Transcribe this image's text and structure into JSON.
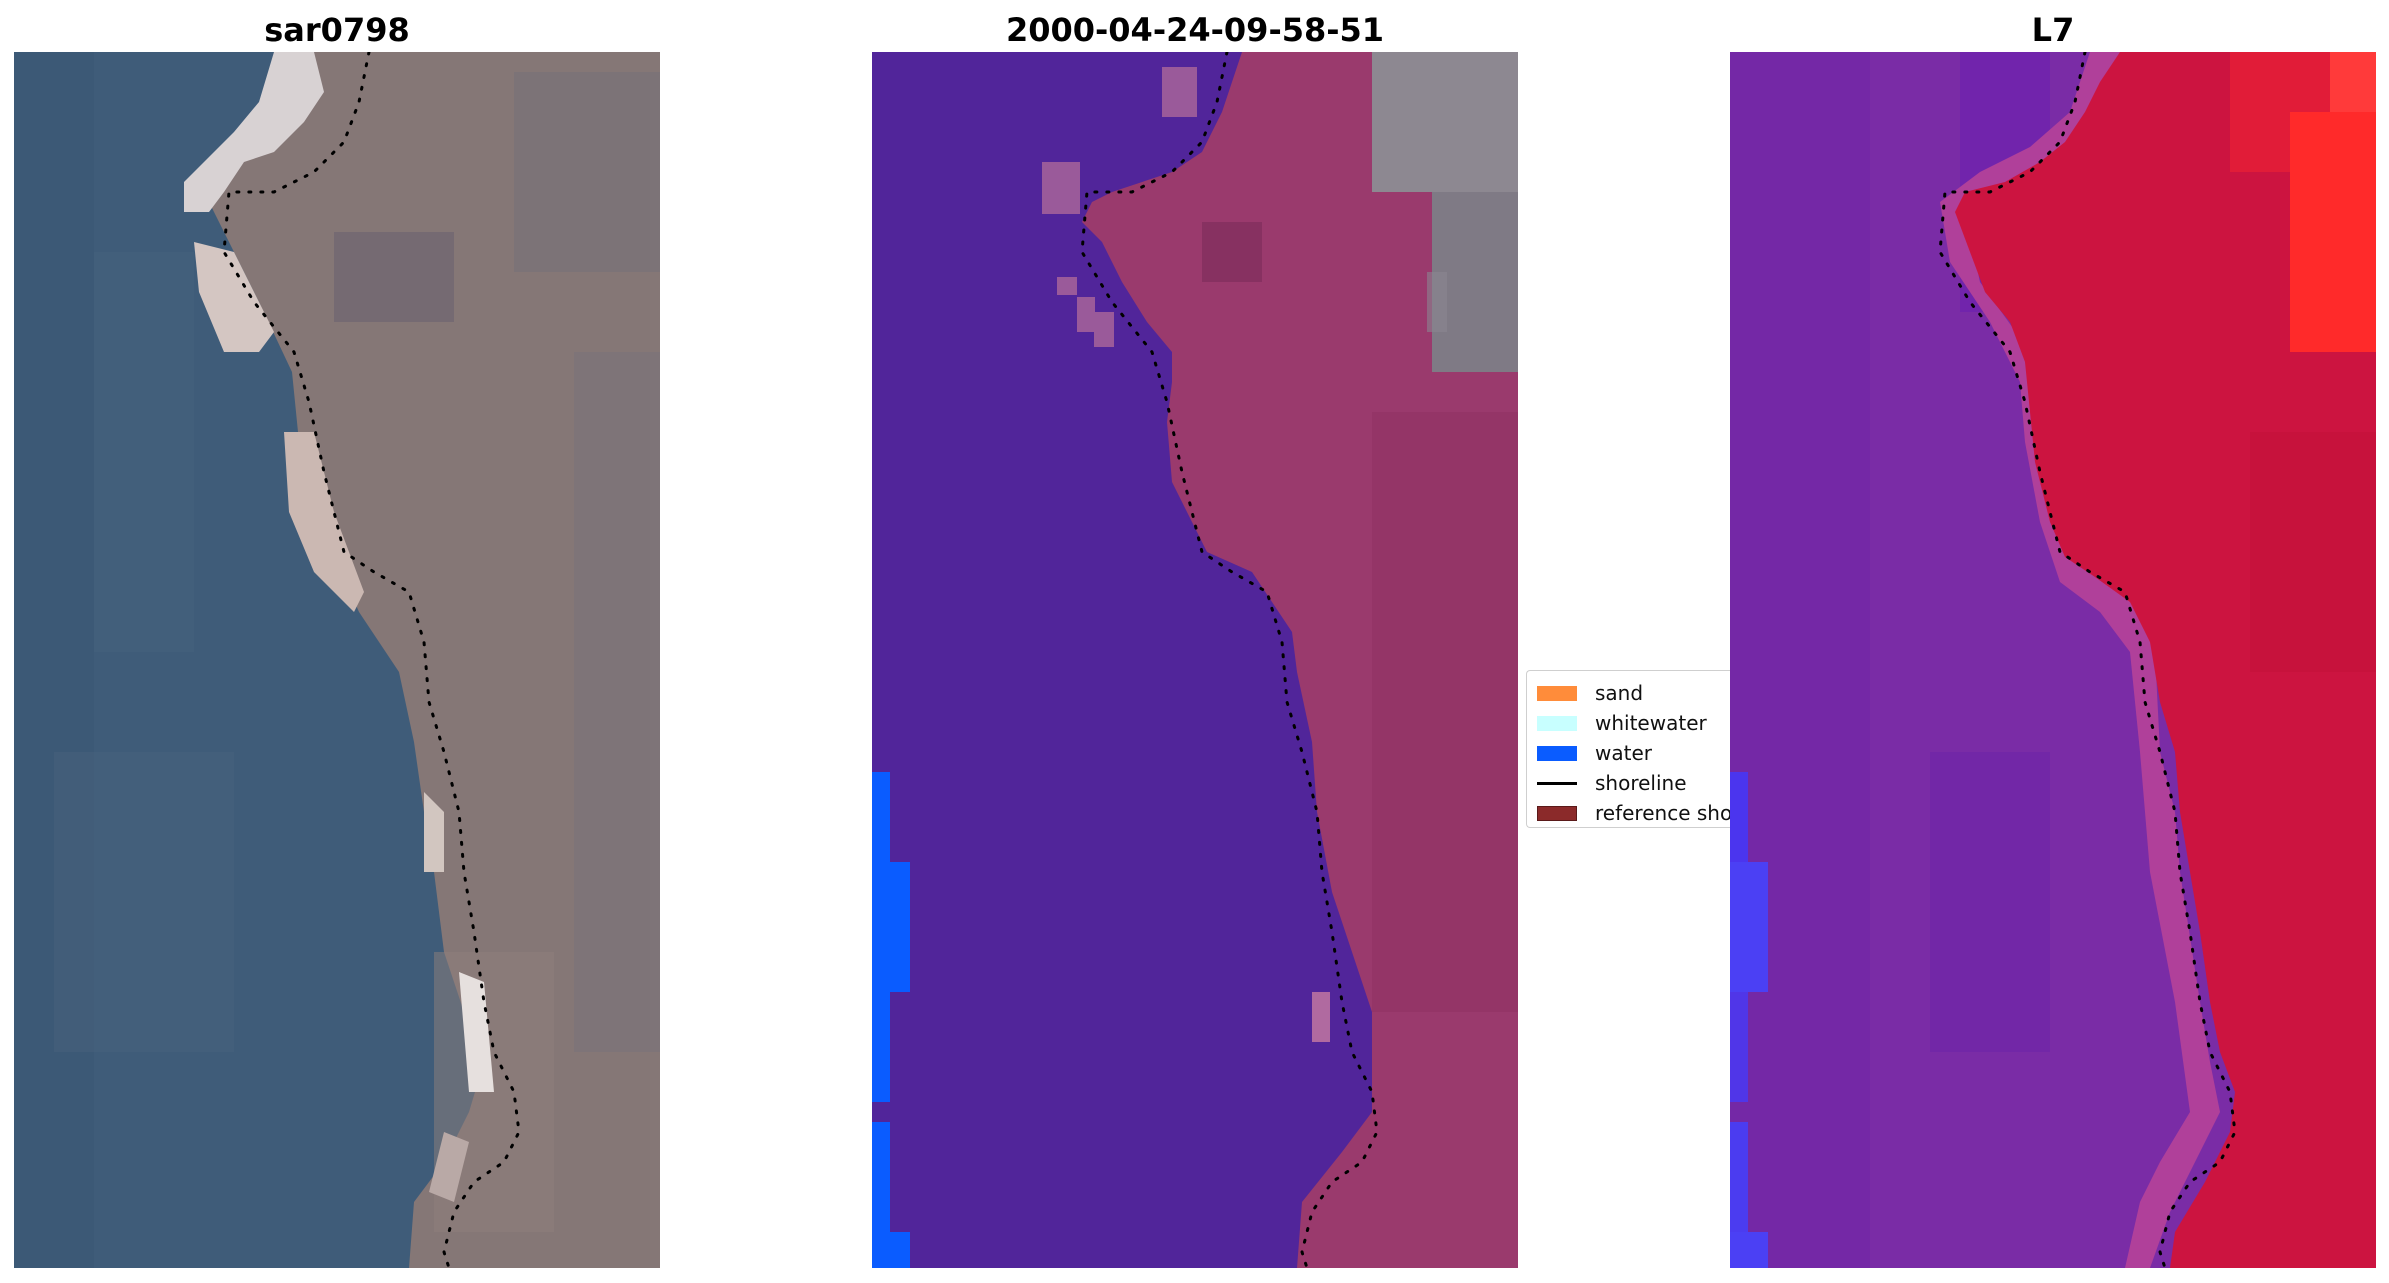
{
  "panels": [
    {
      "title": "sar0798",
      "kind": "rgb"
    },
    {
      "title": "2000-04-24-09-58-51",
      "kind": "classified"
    },
    {
      "title": "L7",
      "kind": "index"
    }
  ],
  "legend": {
    "items": [
      {
        "label": "sand",
        "color": "#ff8c3a",
        "type": "patch"
      },
      {
        "label": "whitewater",
        "color": "#c8ffff",
        "type": "patch"
      },
      {
        "label": "water",
        "color": "#0a5cff",
        "type": "patch"
      },
      {
        "label": "shoreline",
        "color": "#000000",
        "type": "line"
      },
      {
        "label": "reference shoreline",
        "color": "#8b2a2a",
        "type": "patch"
      }
    ]
  },
  "colors": {
    "rgb_sea": "#3f5c79",
    "rgb_land": "#837575",
    "rgb_surf": "#d9cdc6",
    "classified_water_body": "#51259a",
    "classified_land_overlay": "#9a3a6d",
    "classified_water_blue": "#0a5cff",
    "index_water": "#7a2ca6",
    "index_land": "#cc1440",
    "index_bright": "#ff2a2a",
    "shoreline_dots": "#000000"
  }
}
